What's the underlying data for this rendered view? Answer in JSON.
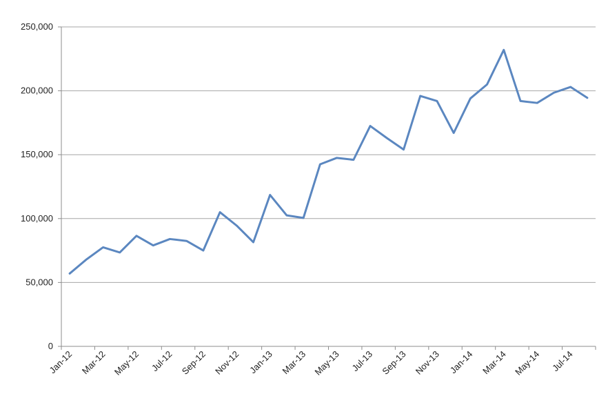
{
  "chart_data": {
    "type": "line",
    "title": "",
    "xlabel": "",
    "ylabel": "",
    "ylim": [
      0,
      250000
    ],
    "yticks": [
      0,
      50000,
      100000,
      150000,
      200000,
      250000
    ],
    "ytick_labels": [
      "0",
      "50,000",
      "100,000",
      "150,000",
      "200,000",
      "250,000"
    ],
    "x": [
      "Jan-12",
      "Feb-12",
      "Mar-12",
      "Apr-12",
      "May-12",
      "Jun-12",
      "Jul-12",
      "Aug-12",
      "Sep-12",
      "Oct-12",
      "Nov-12",
      "Dec-12",
      "Jan-13",
      "Feb-13",
      "Mar-13",
      "Apr-13",
      "May-13",
      "Jun-13",
      "Jul-13",
      "Aug-13",
      "Sep-13",
      "Oct-13",
      "Nov-13",
      "Dec-13",
      "Jan-14",
      "Feb-14",
      "Mar-14",
      "Apr-14",
      "May-14",
      "Jun-14",
      "Jul-14",
      "Aug-14"
    ],
    "xtick_labels": [
      "Jan-12",
      "Mar-12",
      "May-12",
      "Jul-12",
      "Sep-12",
      "Nov-12",
      "Jan-13",
      "Mar-13",
      "May-13",
      "Jul-13",
      "Sep-13",
      "Nov-13",
      "Jan-14",
      "Mar-14",
      "May-14",
      "Jul-14"
    ],
    "series": [
      {
        "color": "#5b87c0",
        "values": [
          57000,
          68000,
          77500,
          73500,
          86500,
          79000,
          84000,
          82500,
          75000,
          105000,
          94500,
          81500,
          118500,
          102500,
          100500,
          142500,
          147500,
          146000,
          172500,
          163000,
          154000,
          196000,
          192000,
          167000,
          194000,
          205000,
          232000,
          192000,
          190500,
          198500,
          203000,
          194500
        ]
      }
    ],
    "grid": true,
    "legend": "none"
  }
}
